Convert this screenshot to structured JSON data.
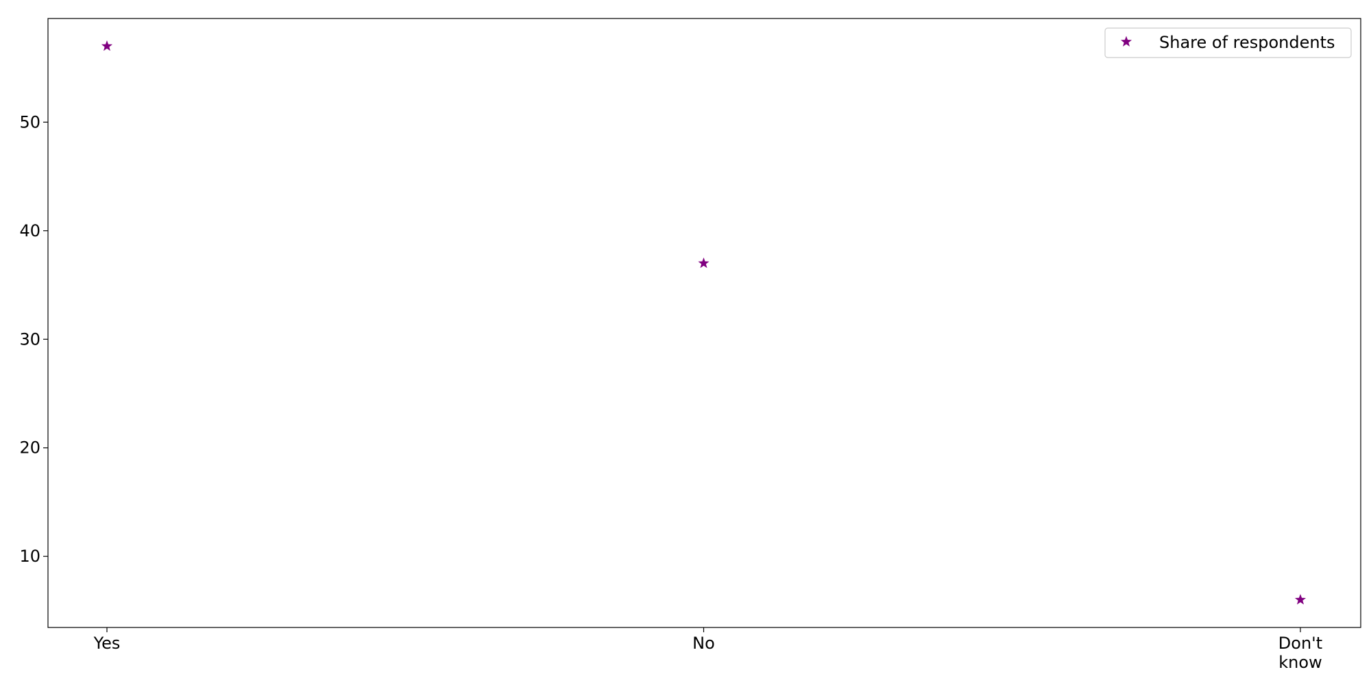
{
  "chart_data": {
    "type": "scatter",
    "categories": [
      "Yes",
      "No",
      "Don't know"
    ],
    "category_display": [
      [
        "Yes"
      ],
      [
        "No"
      ],
      [
        "Don't",
        "know"
      ]
    ],
    "series": [
      {
        "name": "Share of respondents",
        "values": [
          57,
          37,
          6
        ],
        "color": "#800080",
        "marker": "star"
      }
    ],
    "ylim": [
      3.45,
      59.55
    ],
    "yticks": [
      10,
      20,
      30,
      40,
      50
    ],
    "xlabel": "",
    "ylabel": "",
    "title": "",
    "grid": false,
    "legend_position": "top-right"
  }
}
